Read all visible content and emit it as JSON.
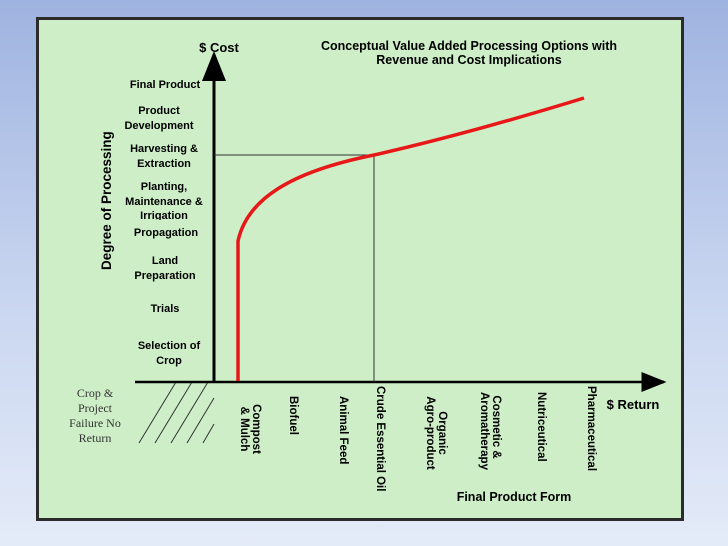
{
  "title": "Conceptual Value Added Processing Options with Revenue and Cost Implications",
  "axes": {
    "y_cost": "$ Cost",
    "x_return": "$ Return",
    "y_processing": "Degree of Processing",
    "x_form": "Final Product Form"
  },
  "stages": [
    "Final Product",
    "Product Development",
    "Harvesting & Extraction",
    "Planting, Maintenance & Irrigation",
    "Propagation",
    "Land Preparation",
    "Trials",
    "Selection of Crop"
  ],
  "products": [
    "Compost & Mulch",
    "Biofuel",
    "Animal Feed",
    "Crude Essential Oil",
    "Organic Agro-product",
    "Cosmetic & Aromatherapy",
    "Nutriceutical",
    "Pharmaceutical"
  ],
  "failure_zone": "Crop & Project Failure No Return",
  "colors": {
    "curve": "#e81818",
    "background": "#cdeec7",
    "frame": "#2b2b2b"
  }
}
